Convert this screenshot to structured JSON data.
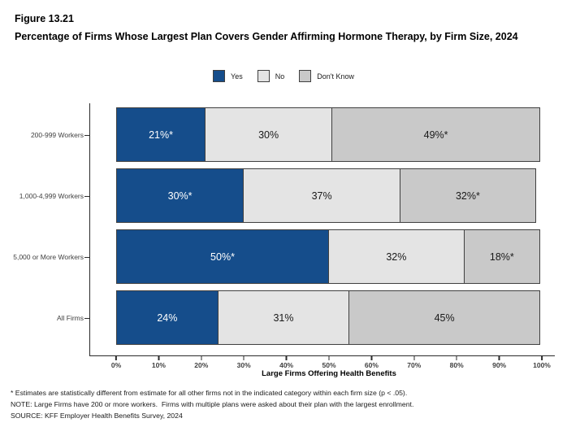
{
  "figure": {
    "label": "Figure 13.21",
    "title": "Percentage of Firms Whose Largest Plan Covers Gender Affirming Hormone Therapy, by Firm Size, 2024"
  },
  "legend": {
    "items": [
      {
        "label": "Yes",
        "color": "#154D8B"
      },
      {
        "label": "No",
        "color": "#E4E4E4"
      },
      {
        "label": "Don't Know",
        "color": "#C9C9C9"
      }
    ]
  },
  "chart_data": {
    "type": "bar",
    "orientation": "horizontal",
    "stacked": true,
    "title": "Percentage of Firms Whose Largest Plan Covers Gender Affirming Hormone Therapy, by Firm Size, 2024",
    "categories": [
      "200-999 Workers",
      "1,000-4,999 Workers",
      "5,000 or More Workers",
      "All Firms"
    ],
    "series": [
      {
        "name": "Yes",
        "color": "#154D8B",
        "label_color": "#FFFFFF",
        "values": [
          21,
          30,
          50,
          24
        ],
        "data_labels": [
          "21%*",
          "30%*",
          "50%*",
          "24%"
        ]
      },
      {
        "name": "No",
        "color": "#E4E4E4",
        "label_color": "#1A1A1A",
        "values": [
          30,
          37,
          32,
          31
        ],
        "data_labels": [
          "30%",
          "37%",
          "32%",
          "31%"
        ]
      },
      {
        "name": "Don't Know",
        "color": "#C9C9C9",
        "label_color": "#1A1A1A",
        "values": [
          49,
          32,
          18,
          45
        ],
        "data_labels": [
          "49%*",
          "32%*",
          "18%*",
          "45%"
        ]
      }
    ],
    "xlabel": "Large Firms Offering Health Benefits",
    "xlim": [
      0,
      100
    ],
    "x_ticks": [
      0,
      10,
      20,
      30,
      40,
      50,
      60,
      70,
      80,
      90,
      100
    ],
    "x_tick_labels": [
      "0%",
      "10%",
      "20%",
      "30%",
      "40%",
      "50%",
      "60%",
      "70%",
      "80%",
      "90%",
      "100%"
    ],
    "grid": false,
    "legend_position": "top-center",
    "axis_color": "#2B2B2B",
    "segment_border_color": "#404040"
  },
  "footnotes": {
    "lines": [
      "* Estimates are statistically different from estimate for all other firms not in the indicated category within each firm size (p < .05).",
      "NOTE: Large Firms have 200 or more workers.  Firms with multiple plans were asked about their plan with the largest enrollment.",
      "SOURCE: KFF Employer Health Benefits Survey, 2024"
    ]
  }
}
